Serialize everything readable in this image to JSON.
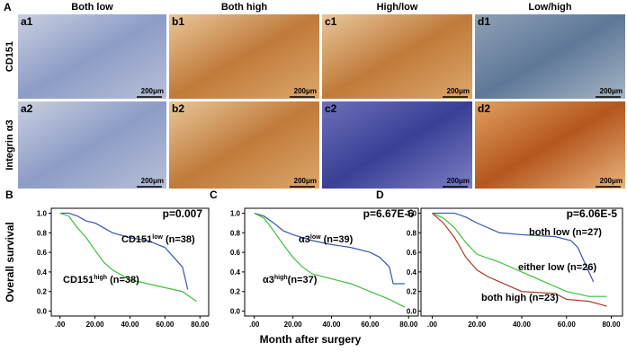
{
  "figure": {
    "panel": "A",
    "column_headers": [
      "Both low",
      "Both high",
      "High/low",
      "Low/high"
    ],
    "row_labels": [
      "CD151",
      "Integrin α3"
    ],
    "cells": [
      [
        "a1",
        "b1",
        "c1",
        "d1"
      ],
      [
        "a2",
        "b2",
        "c2",
        "d2"
      ]
    ],
    "scale": "200μm"
  },
  "x_label": "Month after surgery",
  "y_label": "Overall survival",
  "chart_data": [
    {
      "type": "line",
      "panel": "B",
      "xlim": [
        -5,
        85
      ],
      "ylim": [
        -0.05,
        1.05
      ],
      "xticks": [
        {
          "value": 0,
          "label": ".00"
        },
        {
          "value": 20,
          "label": "20.00"
        },
        {
          "value": 40,
          "label": "40.00"
        },
        {
          "value": 60,
          "label": "60.00"
        },
        {
          "value": 80,
          "label": "80.00"
        }
      ],
      "yticks": [
        {
          "value": 0,
          "label": "0.0"
        },
        0.2,
        0.4,
        0.6,
        0.8,
        {
          "value": 1,
          "label": "1.0"
        }
      ],
      "series": [
        {
          "color": "#3a56b0",
          "x": [
            0,
            5,
            10,
            15,
            20,
            25,
            30,
            40,
            50,
            60,
            65,
            70,
            72,
            73
          ],
          "values": [
            1,
            1,
            0.97,
            0.92,
            0.9,
            0.85,
            0.8,
            0.75,
            0.72,
            0.65,
            0.55,
            0.45,
            0.3,
            0.22
          ]
        },
        {
          "color": "#3fbf3f",
          "x": [
            0,
            5,
            10,
            15,
            20,
            25,
            30,
            35,
            40,
            50,
            60,
            70,
            78
          ],
          "values": [
            1,
            0.97,
            0.85,
            0.75,
            0.62,
            0.5,
            0.42,
            0.37,
            0.32,
            0.28,
            0.24,
            0.2,
            0.1
          ]
        }
      ],
      "annotations": [
        {
          "text": "p=0.007"
        },
        {
          "text": "CD151",
          "sup": "low",
          "rest": " (n=38)"
        },
        {
          "text": "CD151",
          "sup": "high",
          "rest": " (n=38)"
        }
      ]
    },
    {
      "type": "line",
      "panel": "C",
      "xlim": [
        -5,
        85
      ],
      "ylim": [
        -0.05,
        1.05
      ],
      "xticks": [
        {
          "value": 0,
          "label": ".00"
        },
        {
          "value": 20,
          "label": "20.00"
        },
        {
          "value": 40,
          "label": "40.00"
        },
        {
          "value": 60,
          "label": "60.00"
        },
        {
          "value": 80,
          "label": "80.00"
        }
      ],
      "yticks": [
        {
          "value": 0,
          "label": "0.0"
        },
        0.2,
        0.4,
        0.6,
        0.8,
        {
          "value": 1,
          "label": "1.0"
        }
      ],
      "series": [
        {
          "color": "#3a56b0",
          "x": [
            0,
            5,
            10,
            15,
            20,
            30,
            40,
            50,
            60,
            65,
            70,
            72,
            78
          ],
          "values": [
            1,
            0.97,
            0.9,
            0.82,
            0.78,
            0.72,
            0.68,
            0.65,
            0.6,
            0.55,
            0.45,
            0.28,
            0.28
          ]
        },
        {
          "color": "#3fbf3f",
          "x": [
            0,
            5,
            10,
            15,
            20,
            25,
            30,
            40,
            50,
            60,
            70,
            78
          ],
          "values": [
            1,
            0.95,
            0.82,
            0.68,
            0.55,
            0.45,
            0.38,
            0.33,
            0.28,
            0.2,
            0.12,
            0.04
          ]
        }
      ],
      "annotations": [
        {
          "text": "p=6.67E-6"
        },
        {
          "text": "α3",
          "sup": "low",
          "rest": " (n=39)"
        },
        {
          "text": "α3",
          "sup": "high",
          "rest": "(n=37)"
        }
      ]
    },
    {
      "type": "line",
      "panel": "D",
      "xlim": [
        -5,
        85
      ],
      "ylim": [
        -0.05,
        1.05
      ],
      "xticks": [
        {
          "value": 0,
          "label": ".00"
        },
        {
          "value": 20,
          "label": "20.00"
        },
        {
          "value": 40,
          "label": "40.00"
        },
        {
          "value": 60,
          "label": "60.00"
        },
        {
          "value": 80,
          "label": "80.00"
        }
      ],
      "yticks": [
        {
          "value": 0,
          "label": "0.0"
        },
        0.2,
        0.4,
        0.6,
        0.8,
        {
          "value": 1,
          "label": "1.0"
        }
      ],
      "series": [
        {
          "color": "#3a56b0",
          "x": [
            0,
            10,
            15,
            20,
            30,
            40,
            55,
            62,
            65,
            70,
            72
          ],
          "values": [
            1,
            1,
            0.96,
            0.9,
            0.8,
            0.78,
            0.76,
            0.72,
            0.65,
            0.4,
            0.3
          ]
        },
        {
          "color": "#3fbf3f",
          "x": [
            0,
            5,
            10,
            15,
            20,
            30,
            40,
            50,
            60,
            70,
            78
          ],
          "values": [
            1,
            0.95,
            0.85,
            0.7,
            0.58,
            0.5,
            0.4,
            0.3,
            0.2,
            0.15,
            0.15
          ]
        },
        {
          "color": "#b03a2e",
          "x": [
            0,
            5,
            10,
            15,
            20,
            25,
            30,
            40,
            55,
            60,
            70,
            78
          ],
          "values": [
            1,
            0.9,
            0.75,
            0.55,
            0.42,
            0.35,
            0.3,
            0.2,
            0.18,
            0.12,
            0.1,
            0.05
          ]
        }
      ],
      "annotations": [
        {
          "text": "p=6.06E-5"
        },
        {
          "text": "both low (n=27)"
        },
        {
          "text": "either low (n=26)"
        },
        {
          "text": "both high (n=23)"
        }
      ]
    }
  ]
}
